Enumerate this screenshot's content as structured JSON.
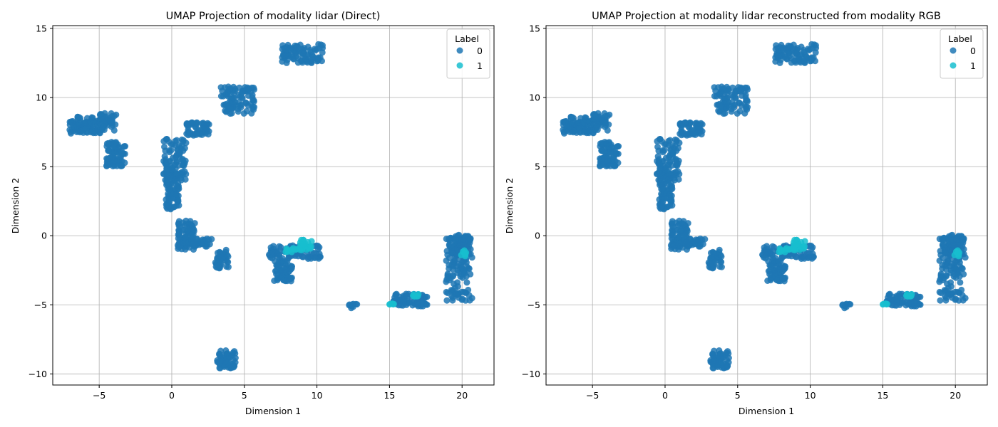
{
  "chart_data": [
    {
      "type": "scatter",
      "title": "UMAP Projection of modality lidar (Direct)",
      "xlabel": "Dimension 1",
      "ylabel": "Dimension 2",
      "xlim": [
        -8.2,
        22.2
      ],
      "ylim": [
        -10.8,
        15.2
      ],
      "xticks": [
        -5,
        0,
        5,
        10,
        15,
        20
      ],
      "yticks": [
        -10,
        -5,
        0,
        5,
        10,
        15
      ],
      "grid": true,
      "legend": {
        "title": "Label",
        "placement": "top-right"
      },
      "series": [
        {
          "name": "0",
          "color": "#1f77b4",
          "clusters": [
            {
              "x": [
                -7.1,
                -4.9
              ],
              "y": [
                7.4,
                8.6
              ]
            },
            {
              "x": [
                -5.0,
                -3.8
              ],
              "y": [
                7.6,
                8.9
              ]
            },
            {
              "x": [
                -4.5,
                -3.2
              ],
              "y": [
                5.0,
                6.8
              ]
            },
            {
              "x": [
                -0.6,
                1.0
              ],
              "y": [
                4.0,
                7.0
              ]
            },
            {
              "x": [
                -0.4,
                0.5
              ],
              "y": [
                1.9,
                4.5
              ]
            },
            {
              "x": [
                1.0,
                2.6
              ],
              "y": [
                7.2,
                8.2
              ]
            },
            {
              "x": [
                3.3,
                5.7
              ],
              "y": [
                8.8,
                10.8
              ]
            },
            {
              "x": [
                7.6,
                10.4
              ],
              "y": [
                12.5,
                13.9
              ]
            },
            {
              "x": [
                0.4,
                1.6
              ],
              "y": [
                -1.0,
                1.1
              ]
            },
            {
              "x": [
                1.3,
                2.8
              ],
              "y": [
                -0.8,
                -0.2
              ]
            },
            {
              "x": [
                3.0,
                3.9
              ],
              "y": [
                -2.4,
                -1.0
              ]
            },
            {
              "x": [
                6.7,
                10.3
              ],
              "y": [
                -1.7,
                -0.7
              ]
            },
            {
              "x": [
                7.0,
                8.3
              ],
              "y": [
                -3.3,
                -1.8
              ]
            },
            {
              "x": [
                12.2,
                12.9
              ],
              "y": [
                -5.3,
                -4.9
              ]
            },
            {
              "x": [
                15.2,
                17.6
              ],
              "y": [
                -5.1,
                -4.2
              ]
            },
            {
              "x": [
                18.9,
                20.6
              ],
              "y": [
                -1.6,
                0.1
              ]
            },
            {
              "x": [
                18.9,
                20.7
              ],
              "y": [
                -4.8,
                -1.0
              ]
            },
            {
              "x": [
                3.1,
                4.4
              ],
              "y": [
                -9.6,
                -8.3
              ]
            }
          ]
        },
        {
          "name": "1",
          "color": "#17becf",
          "clusters": [
            {
              "x": [
                7.8,
                8.7
              ],
              "y": [
                -1.2,
                -0.9
              ]
            },
            {
              "x": [
                8.8,
                9.7
              ],
              "y": [
                -1.1,
                -0.3
              ]
            },
            {
              "x": [
                15.0,
                15.4
              ],
              "y": [
                -5.1,
                -4.9
              ]
            },
            {
              "x": [
                16.6,
                17.0
              ],
              "y": [
                -4.4,
                -4.1
              ]
            },
            {
              "x": [
                19.9,
                20.3
              ],
              "y": [
                -1.5,
                -0.9
              ]
            }
          ]
        }
      ]
    },
    {
      "type": "scatter",
      "title": "UMAP Projection at modality lidar reconstructed from modality RGB",
      "xlabel": "Dimension 1",
      "ylabel": "Dimension 2",
      "xlim": [
        -8.2,
        22.2
      ],
      "ylim": [
        -10.8,
        15.2
      ],
      "xticks": [
        -5,
        0,
        5,
        10,
        15,
        20
      ],
      "yticks": [
        -10,
        -5,
        0,
        5,
        10,
        15
      ],
      "grid": true,
      "legend": {
        "title": "Label",
        "placement": "top-right"
      },
      "series": [
        {
          "name": "0",
          "color": "#1f77b4",
          "clusters": [
            {
              "x": [
                -7.1,
                -4.9
              ],
              "y": [
                7.4,
                8.6
              ]
            },
            {
              "x": [
                -5.0,
                -3.8
              ],
              "y": [
                7.6,
                8.9
              ]
            },
            {
              "x": [
                -4.5,
                -3.2
              ],
              "y": [
                5.0,
                6.8
              ]
            },
            {
              "x": [
                -0.6,
                1.0
              ],
              "y": [
                4.0,
                7.0
              ]
            },
            {
              "x": [
                -0.4,
                0.5
              ],
              "y": [
                1.9,
                4.5
              ]
            },
            {
              "x": [
                1.0,
                2.6
              ],
              "y": [
                7.2,
                8.2
              ]
            },
            {
              "x": [
                3.3,
                5.7
              ],
              "y": [
                8.8,
                10.8
              ]
            },
            {
              "x": [
                7.6,
                10.4
              ],
              "y": [
                12.5,
                13.9
              ]
            },
            {
              "x": [
                0.4,
                1.6
              ],
              "y": [
                -1.0,
                1.1
              ]
            },
            {
              "x": [
                1.3,
                2.8
              ],
              "y": [
                -0.8,
                -0.2
              ]
            },
            {
              "x": [
                3.0,
                3.9
              ],
              "y": [
                -2.4,
                -1.0
              ]
            },
            {
              "x": [
                6.7,
                10.3
              ],
              "y": [
                -1.7,
                -0.7
              ]
            },
            {
              "x": [
                7.0,
                8.3
              ],
              "y": [
                -3.3,
                -1.8
              ]
            },
            {
              "x": [
                12.2,
                12.9
              ],
              "y": [
                -5.3,
                -4.9
              ]
            },
            {
              "x": [
                15.2,
                17.6
              ],
              "y": [
                -5.1,
                -4.2
              ]
            },
            {
              "x": [
                18.9,
                20.6
              ],
              "y": [
                -1.6,
                0.1
              ]
            },
            {
              "x": [
                18.9,
                20.7
              ],
              "y": [
                -4.8,
                -1.0
              ]
            },
            {
              "x": [
                3.1,
                4.4
              ],
              "y": [
                -9.6,
                -8.3
              ]
            }
          ]
        },
        {
          "name": "1",
          "color": "#17becf",
          "clusters": [
            {
              "x": [
                7.8,
                8.7
              ],
              "y": [
                -1.2,
                -0.9
              ]
            },
            {
              "x": [
                8.8,
                9.7
              ],
              "y": [
                -1.1,
                -0.3
              ]
            },
            {
              "x": [
                15.0,
                15.4
              ],
              "y": [
                -5.1,
                -4.9
              ]
            },
            {
              "x": [
                16.6,
                17.0
              ],
              "y": [
                -4.4,
                -4.1
              ]
            },
            {
              "x": [
                19.9,
                20.3
              ],
              "y": [
                -1.5,
                -0.9
              ]
            }
          ]
        }
      ]
    }
  ]
}
